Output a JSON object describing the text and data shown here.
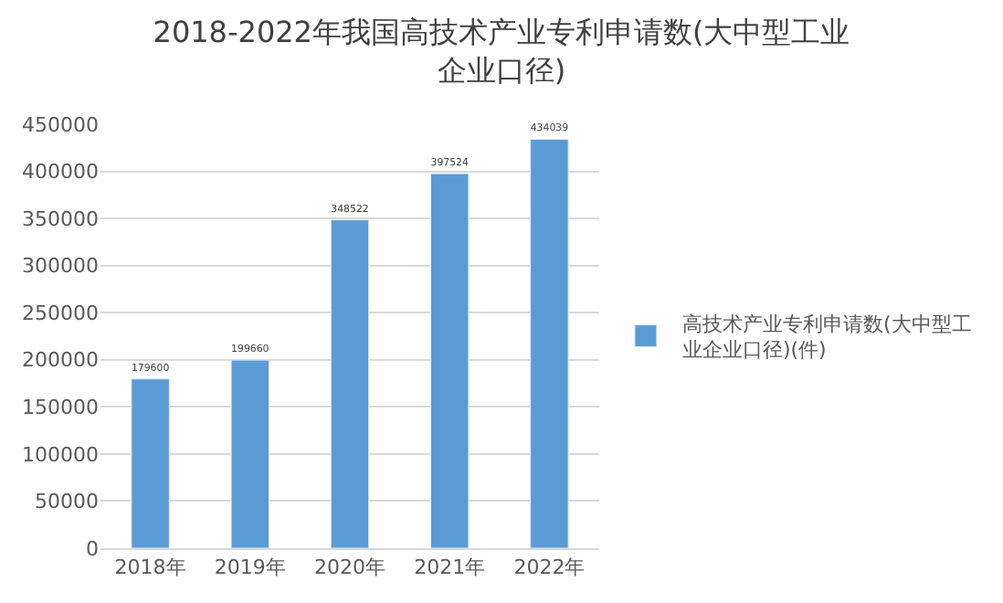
{
  "chart_data": {
    "type": "bar",
    "title": "2018-2022年我国高技术产业专利申请数(大中型工业企业口径)",
    "categories": [
      "2018年",
      "2019年",
      "2020年",
      "2021年",
      "2022年"
    ],
    "series": [
      {
        "name": "高技术产业专利申请数(大中型工业企业口径)(件)",
        "color": "#5b9bd5",
        "values": [
          179600,
          199660,
          348522,
          397524,
          434039
        ]
      }
    ],
    "ylim": [
      0,
      450000
    ],
    "yticks": [
      0,
      50000,
      100000,
      150000,
      200000,
      250000,
      300000,
      350000,
      400000,
      450000
    ],
    "grid": "y",
    "legend": "right",
    "data_labels": true
  }
}
